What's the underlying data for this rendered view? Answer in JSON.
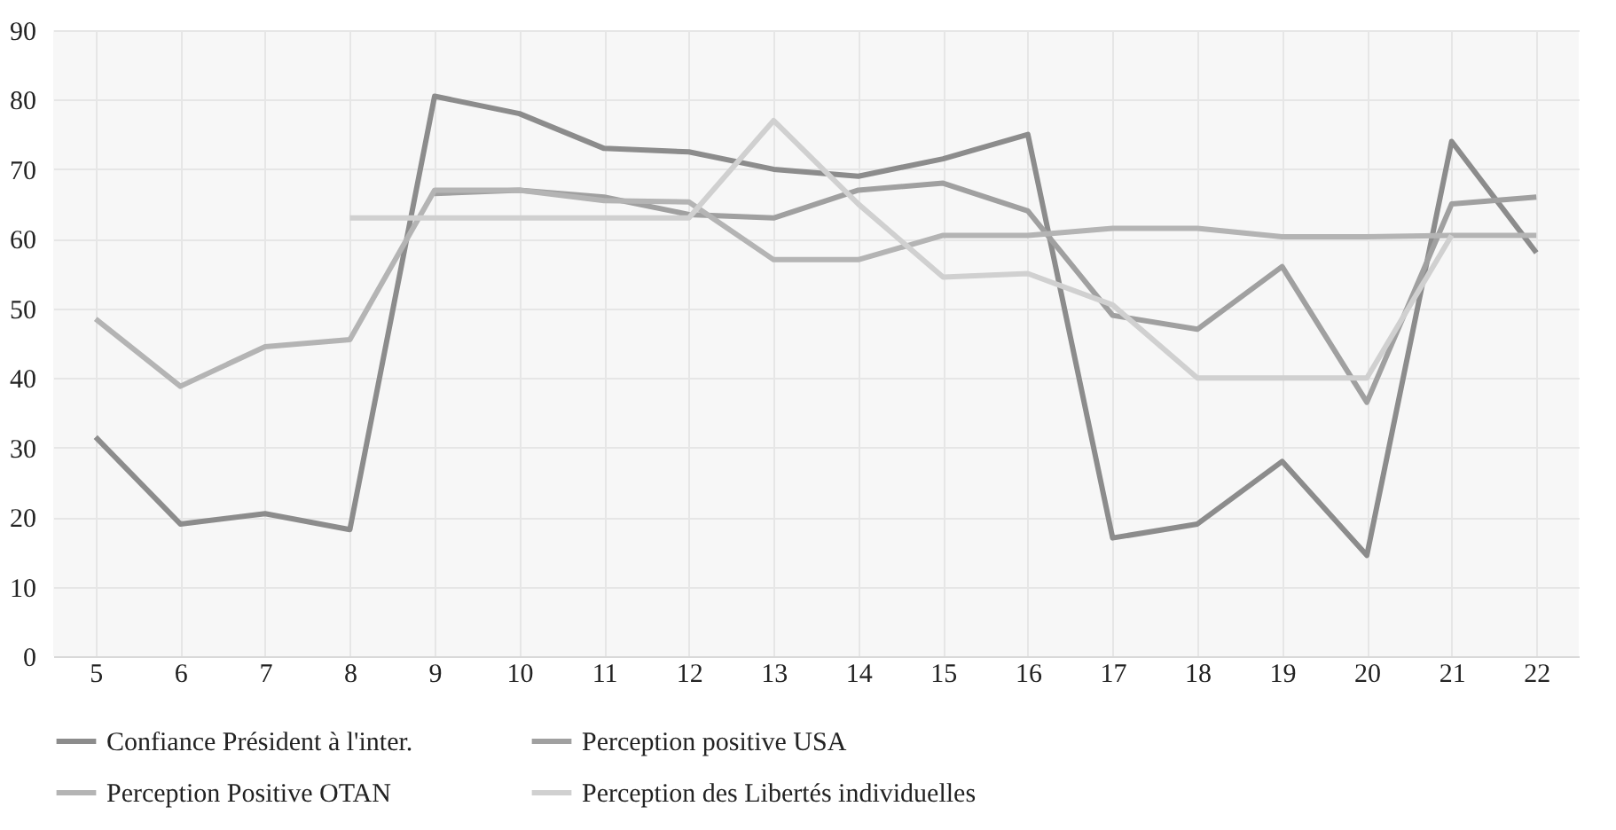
{
  "chart_data": {
    "type": "line",
    "categories": [
      "5",
      "6",
      "7",
      "8",
      "9",
      "10",
      "11",
      "12",
      "13",
      "14",
      "15",
      "16",
      "17",
      "18",
      "19",
      "20",
      "21",
      "22"
    ],
    "series": [
      {
        "name": "Confiance Président à l'inter.",
        "color": "#8c8c8c",
        "values": [
          31.5,
          19,
          20.5,
          18.2,
          80.5,
          78,
          73,
          72.5,
          70,
          69,
          71.5,
          75,
          17,
          19,
          28,
          14.5,
          74,
          58
        ]
      },
      {
        "name": "Perception positive USA",
        "color": "#a0a0a0",
        "values": [
          null,
          null,
          null,
          null,
          66.5,
          67,
          66,
          63.5,
          63,
          67,
          68,
          64,
          49,
          47,
          56,
          36.5,
          65,
          66
        ]
      },
      {
        "name": "Perception Positive OTAN",
        "color": "#b4b4b4",
        "values": [
          48.5,
          38.8,
          44.5,
          45.5,
          67,
          67,
          65.5,
          65.3,
          57,
          57,
          60.5,
          60.5,
          61.5,
          61.5,
          60.3,
          60.3,
          60.5,
          60.5
        ]
      },
      {
        "name": "Perception des Libertés individuelles",
        "color": "#d0d0d0",
        "values": [
          null,
          null,
          null,
          63,
          63,
          63,
          63,
          63,
          77,
          65,
          54.5,
          55,
          50.5,
          40,
          40,
          40,
          60.5,
          null
        ]
      }
    ],
    "ylim": [
      0,
      90
    ],
    "yticks": [
      0,
      10,
      20,
      30,
      40,
      50,
      60,
      70,
      80,
      90
    ],
    "grid": true,
    "legend": "bottom",
    "marker": "none",
    "line_style": "solid"
  }
}
